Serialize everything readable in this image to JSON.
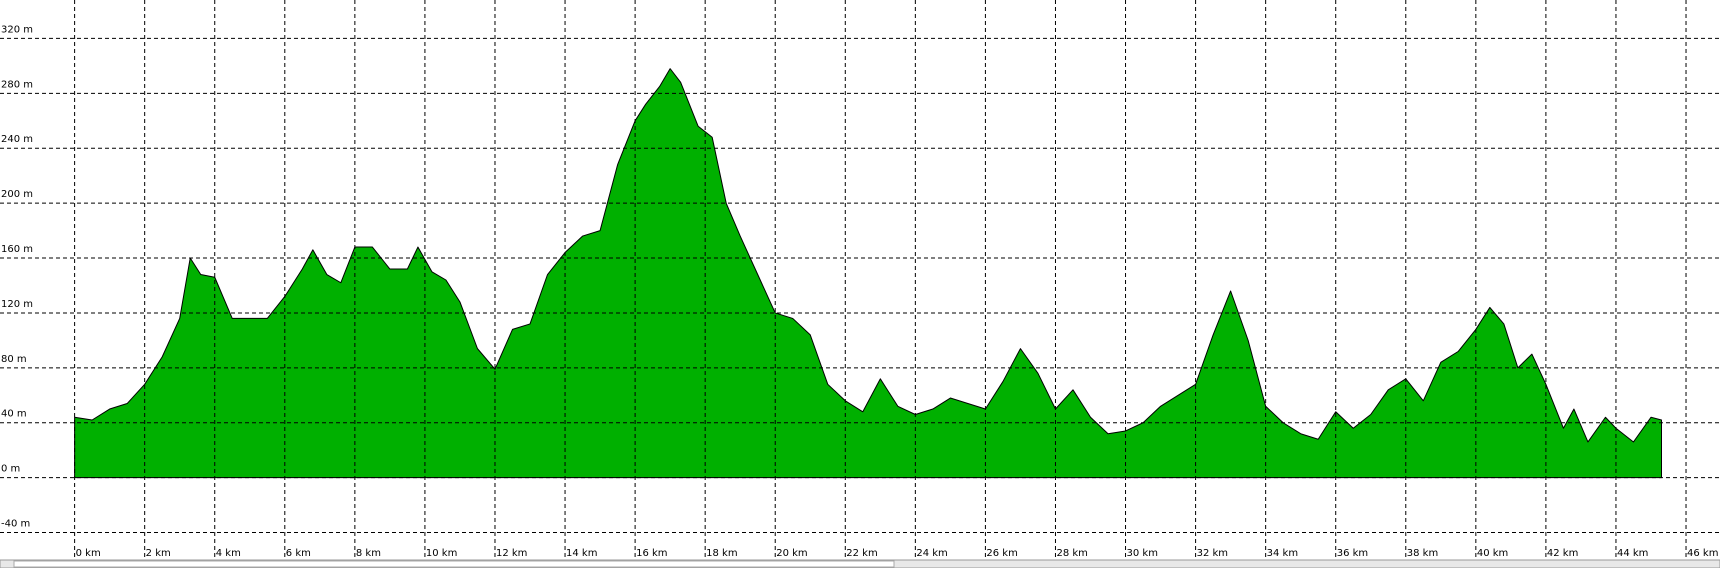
{
  "chart_data": {
    "type": "area",
    "x": [
      0,
      0.5,
      1.0,
      1.5,
      2.0,
      2.5,
      3.0,
      3.3,
      3.6,
      4.0,
      4.5,
      5.0,
      5.5,
      6.0,
      6.5,
      6.8,
      7.2,
      7.6,
      8.0,
      8.5,
      9.0,
      9.5,
      9.8,
      10.2,
      10.6,
      11.0,
      11.5,
      12.0,
      12.5,
      13.0,
      13.5,
      14.0,
      14.5,
      15.0,
      15.5,
      16.0,
      16.3,
      16.7,
      17.0,
      17.3,
      17.8,
      18.2,
      18.6,
      19.0,
      19.5,
      20.0,
      20.5,
      21.0,
      21.5,
      22.0,
      22.5,
      23.0,
      23.5,
      24.0,
      24.5,
      25.0,
      25.5,
      26.0,
      26.5,
      27.0,
      27.5,
      28.0,
      28.5,
      29.0,
      29.5,
      30.0,
      30.5,
      31.0,
      31.5,
      32.0,
      32.5,
      33.0,
      33.5,
      34.0,
      34.5,
      35.0,
      35.5,
      36.0,
      36.5,
      37.0,
      37.5,
      38.0,
      38.5,
      39.0,
      39.5,
      40.0,
      40.4,
      40.8,
      41.2,
      41.6,
      42.0,
      42.5,
      42.8,
      43.2,
      43.7,
      44.0,
      44.5,
      45.0,
      45.3
    ],
    "values": [
      44,
      42,
      50,
      54,
      68,
      88,
      116,
      160,
      148,
      146,
      116,
      116,
      116,
      132,
      152,
      166,
      148,
      142,
      168,
      168,
      152,
      152,
      168,
      150,
      144,
      128,
      94,
      79,
      108,
      112,
      148,
      164,
      176,
      180,
      228,
      260,
      272,
      285,
      298,
      288,
      256,
      248,
      200,
      176,
      148,
      120,
      116,
      104,
      68,
      56,
      48,
      72,
      52,
      46,
      50,
      58,
      54,
      50,
      70,
      94,
      76,
      50,
      64,
      44,
      32,
      34,
      40,
      52,
      60,
      68,
      104,
      136,
      100,
      52,
      40,
      32,
      28,
      48,
      36,
      46,
      64,
      72,
      56,
      84,
      92,
      108,
      124,
      112,
      80,
      90,
      68,
      36,
      50,
      26,
      44,
      36,
      26,
      44,
      42
    ],
    "color": "#00b000",
    "xlim": [
      -2.13,
      46.97
    ],
    "ylim": [
      -60,
      348
    ],
    "xticks": [
      {
        "value": 0,
        "label": "0 km"
      },
      {
        "value": 2,
        "label": "2 km"
      },
      {
        "value": 4,
        "label": "4 km"
      },
      {
        "value": 6,
        "label": "6 km"
      },
      {
        "value": 8,
        "label": "8 km"
      },
      {
        "value": 10,
        "label": "10 km"
      },
      {
        "value": 12,
        "label": "12 km"
      },
      {
        "value": 14,
        "label": "14 km"
      },
      {
        "value": 16,
        "label": "16 km"
      },
      {
        "value": 18,
        "label": "18 km"
      },
      {
        "value": 20,
        "label": "20 km"
      },
      {
        "value": 22,
        "label": "22 km"
      },
      {
        "value": 24,
        "label": "24 km"
      },
      {
        "value": 26,
        "label": "26 km"
      },
      {
        "value": 28,
        "label": "28 km"
      },
      {
        "value": 30,
        "label": "30 km"
      },
      {
        "value": 32,
        "label": "32 km"
      },
      {
        "value": 34,
        "label": "34 km"
      },
      {
        "value": 36,
        "label": "36 km"
      },
      {
        "value": 38,
        "label": "38 km"
      },
      {
        "value": 40,
        "label": "40 km"
      },
      {
        "value": 42,
        "label": "42 km"
      },
      {
        "value": 44,
        "label": "44 km"
      },
      {
        "value": 46,
        "label": "46 km"
      }
    ],
    "yticks": [
      {
        "value": -40,
        "label": "-40 m"
      },
      {
        "value": 0,
        "label": "0 m"
      },
      {
        "value": 40,
        "label": "40 m"
      },
      {
        "value": 80,
        "label": "80 m"
      },
      {
        "value": 120,
        "label": "120 m"
      },
      {
        "value": 160,
        "label": "160 m"
      },
      {
        "value": 200,
        "label": "200 m"
      },
      {
        "value": 240,
        "label": "240 m"
      },
      {
        "value": 280,
        "label": "280 m"
      },
      {
        "value": 320,
        "label": "320 m"
      }
    ],
    "grid": true
  }
}
